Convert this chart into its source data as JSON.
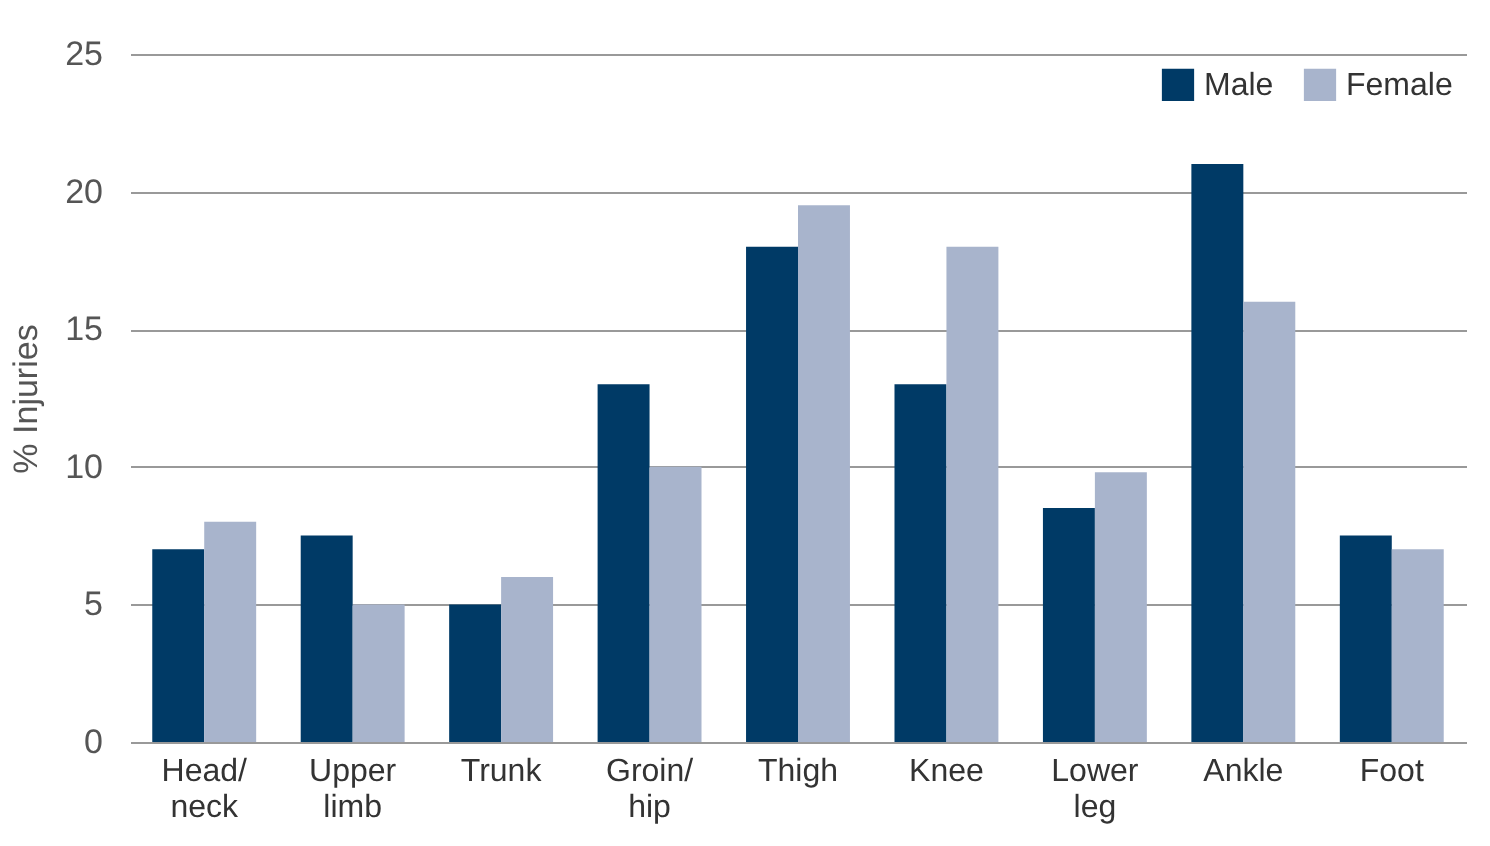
{
  "chart_data": {
    "type": "bar",
    "ylabel": "% Injuries",
    "categories": [
      "Head/\nneck",
      "Upper\nlimb",
      "Trunk",
      "Groin/\nhip",
      "Thigh",
      "Knee",
      "Lower\nleg",
      "Ankle",
      "Foot"
    ],
    "series": [
      {
        "name": "Male",
        "color": "#003a66",
        "values": [
          7,
          7.5,
          5,
          13,
          18,
          13,
          8.5,
          21,
          7.5
        ]
      },
      {
        "name": "Female",
        "color": "#a8b4cc",
        "values": [
          8,
          5,
          6,
          10,
          19.5,
          18,
          9.8,
          16,
          7
        ]
      }
    ],
    "ylim": [
      0,
      25
    ],
    "yticks": [
      0,
      5,
      10,
      15,
      20,
      25
    ],
    "grid": "y",
    "legend": "top right"
  }
}
